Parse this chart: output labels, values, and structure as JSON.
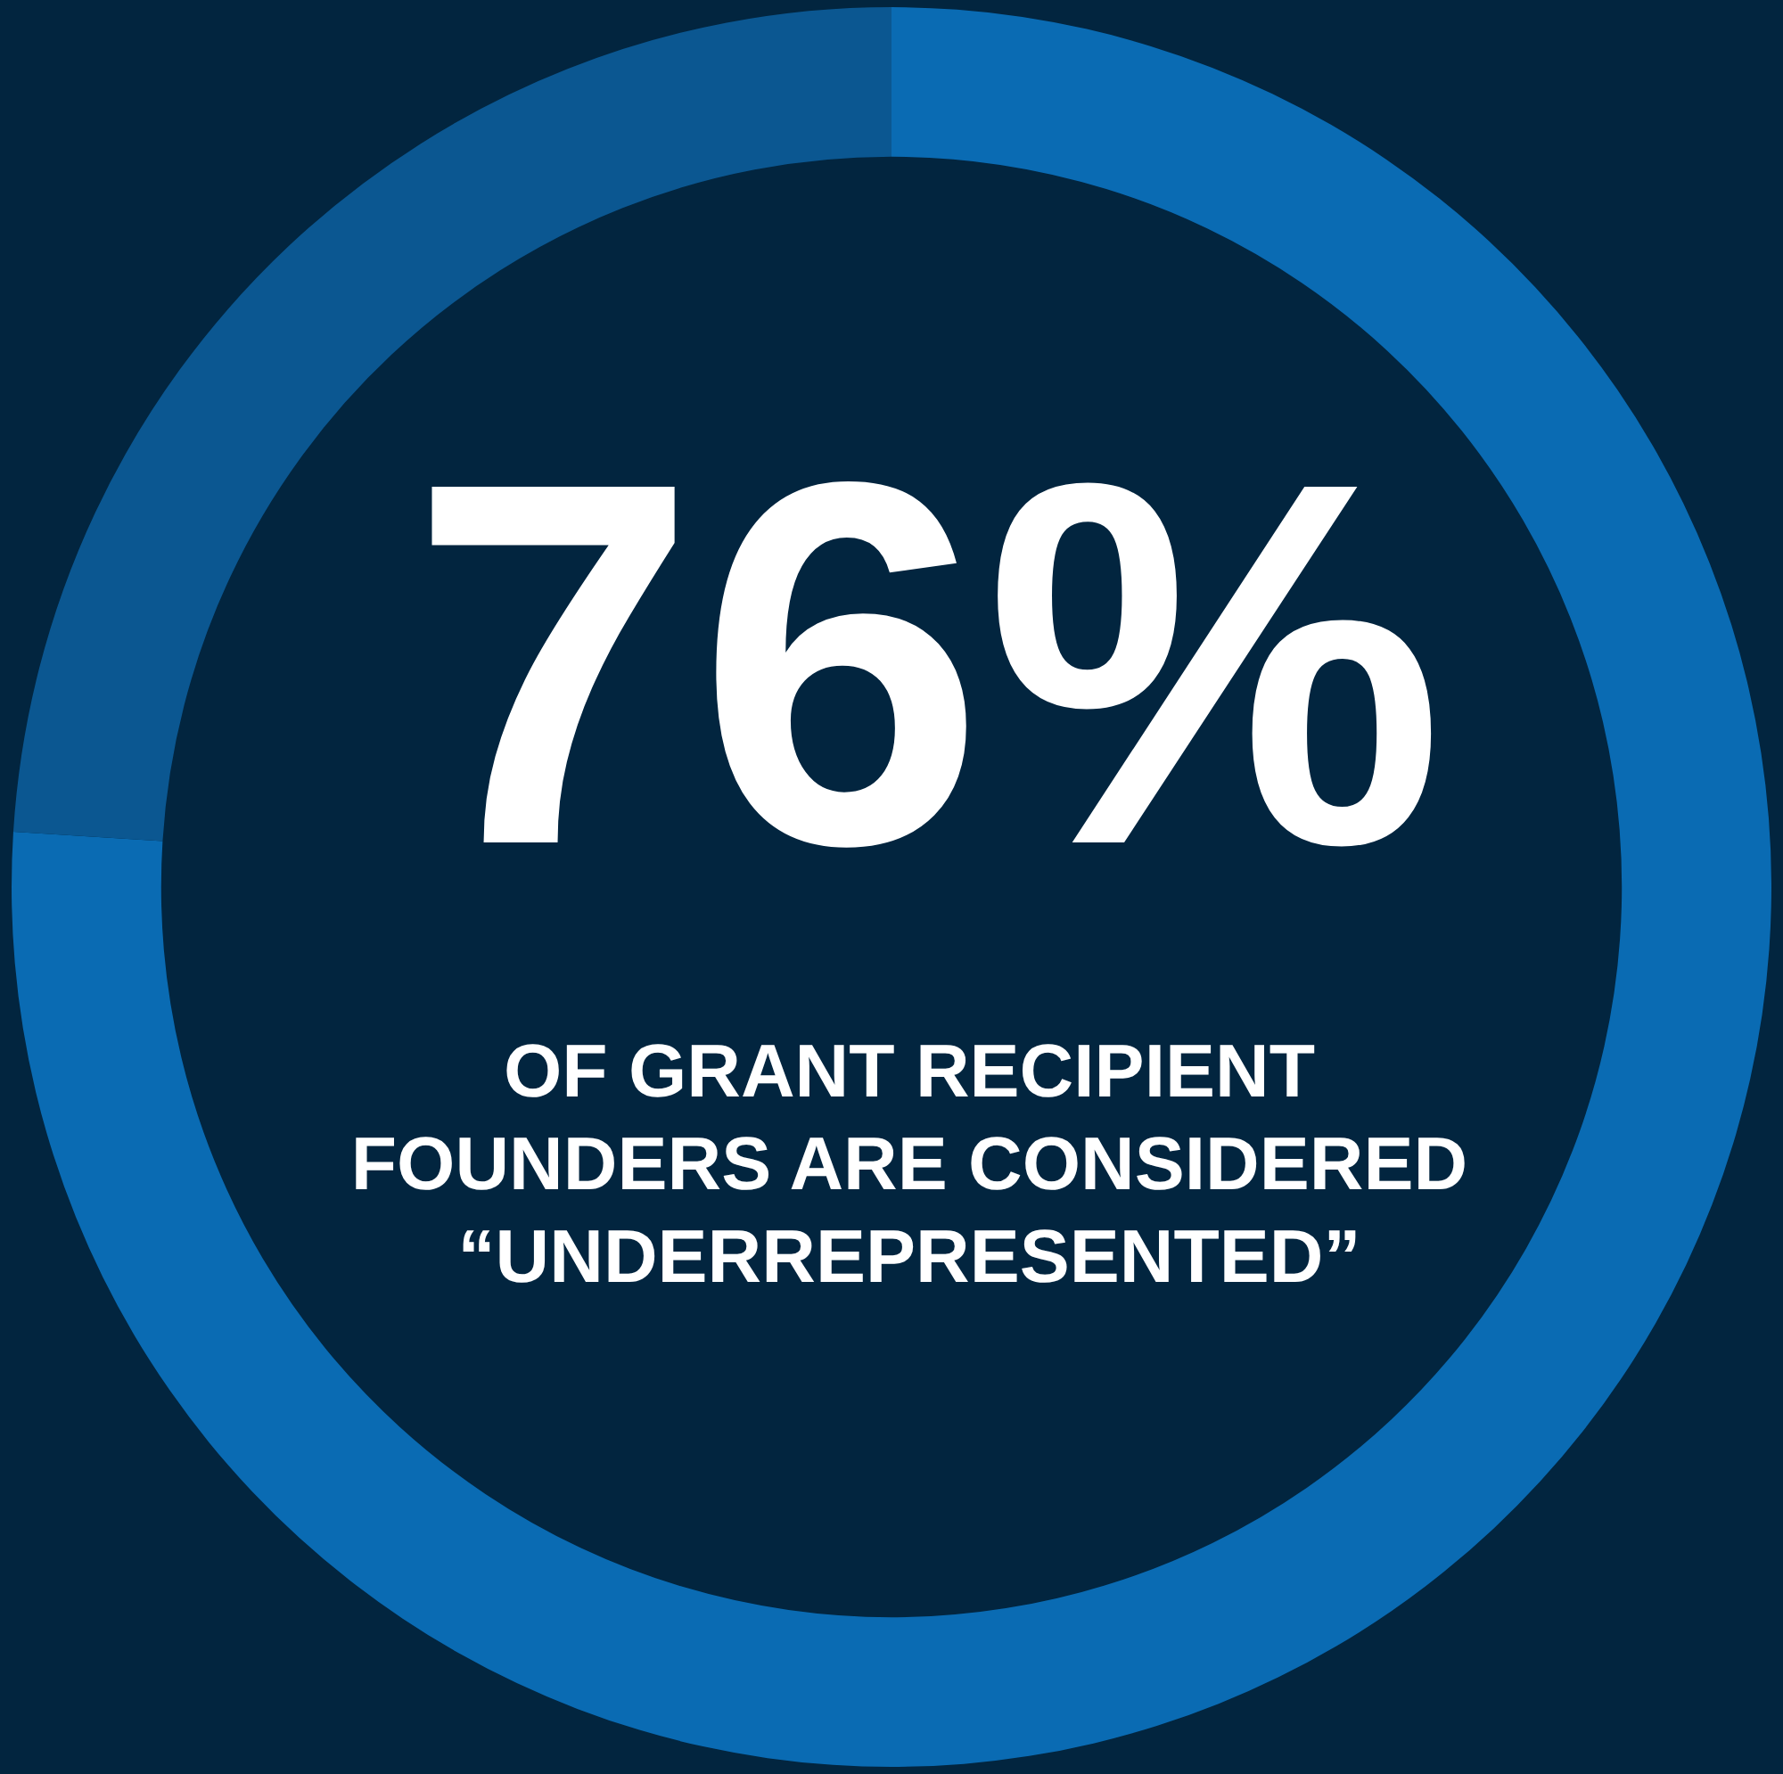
{
  "chart_data": {
    "type": "donut",
    "categories": [
      null,
      null
    ],
    "values": [
      76,
      24
    ],
    "colors": [
      "#0a6bb3",
      "#0b5791"
    ],
    "value_labels": [
      "76%",
      null
    ],
    "annotations": [
      "OF GRANT RECIPIENT FOUNDERS ARE CONSIDERED “UNDERREPRESENTED”"
    ],
    "legend": false
  }
}
